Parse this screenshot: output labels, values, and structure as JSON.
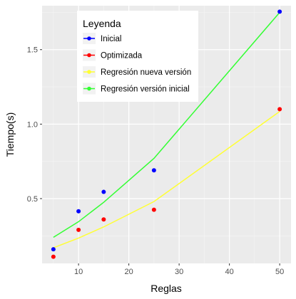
{
  "chart_data": {
    "type": "scatter",
    "xlabel": "Reglas",
    "ylabel": "Tiempo(s)",
    "xlim": [
      2.75,
      52.25
    ],
    "ylim": [
      0.065,
      1.795
    ],
    "x_ticks": [
      10,
      20,
      30,
      40,
      50
    ],
    "y_ticks": [
      0.5,
      1.0,
      1.5
    ],
    "x_tick_labels": [
      "10",
      "20",
      "30",
      "40",
      "50"
    ],
    "y_tick_labels": [
      "0.5",
      "1.0",
      "1.5"
    ],
    "grid": true,
    "legend": {
      "title": "Leyenda",
      "placement": "top-center",
      "entries": [
        "Inicial",
        "Optimizada",
        "Regresión nueva versión",
        "Regresión versión inicial"
      ]
    },
    "series": [
      {
        "name": "Inicial",
        "kind": "points",
        "color": "#0000ff",
        "x": [
          5,
          10,
          15,
          25,
          50
        ],
        "y": [
          0.16,
          0.415,
          0.545,
          0.69,
          1.755
        ]
      },
      {
        "name": "Optimizada",
        "kind": "points",
        "color": "#ff0000",
        "x": [
          5,
          10,
          15,
          25,
          50
        ],
        "y": [
          0.11,
          0.29,
          0.36,
          0.425,
          1.1
        ]
      },
      {
        "name": "Regresión nueva versión",
        "kind": "line",
        "color": "#ffff33",
        "x": [
          5,
          10,
          15,
          25,
          50
        ],
        "y": [
          0.17,
          0.235,
          0.31,
          0.48,
          1.085
        ]
      },
      {
        "name": "Regresión versión inicial",
        "kind": "line",
        "color": "#33ff33",
        "x": [
          5,
          10,
          15,
          25,
          50
        ],
        "y": [
          0.24,
          0.345,
          0.475,
          0.77,
          1.75
        ]
      }
    ]
  }
}
